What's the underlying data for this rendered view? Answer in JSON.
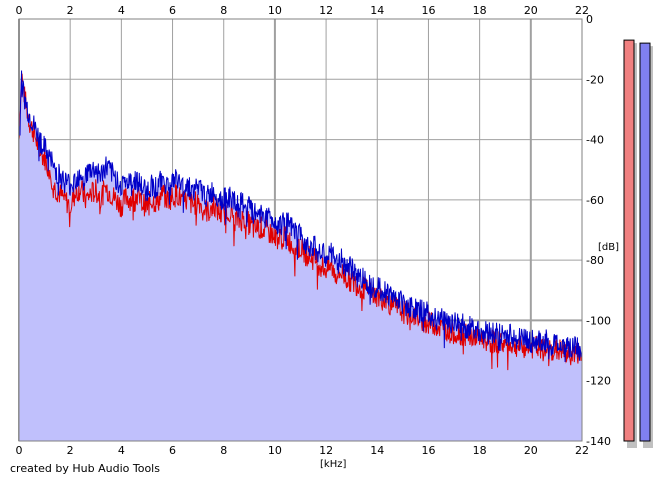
{
  "chart_data": {
    "type": "area",
    "title": "",
    "xlabel": "[kHz]",
    "ylabel": "[dB]",
    "xlim": [
      0,
      22
    ],
    "ylim": [
      -140,
      0
    ],
    "x_ticks": [
      0,
      2,
      4,
      6,
      8,
      10,
      12,
      14,
      16,
      18,
      20,
      22
    ],
    "y_ticks": [
      0,
      -20,
      -40,
      -60,
      -80,
      -100,
      -120,
      -140
    ],
    "grid": true,
    "x_ticks_top": true,
    "series": [
      {
        "color": "#e00000",
        "points": [
          [
            0,
            -40
          ],
          [
            0.1,
            -18
          ],
          [
            0.2,
            -25
          ],
          [
            0.4,
            -34
          ],
          [
            0.6,
            -38
          ],
          [
            0.8,
            -44
          ],
          [
            1,
            -46
          ],
          [
            1.2,
            -50
          ],
          [
            1.4,
            -56
          ],
          [
            1.6,
            -58
          ],
          [
            1.8,
            -60
          ],
          [
            2,
            -62
          ],
          [
            2.2,
            -58
          ],
          [
            2.4,
            -56
          ],
          [
            2.6,
            -60
          ],
          [
            2.8,
            -58
          ],
          [
            3,
            -57
          ],
          [
            3.2,
            -59
          ],
          [
            3.4,
            -56
          ],
          [
            3.6,
            -58
          ],
          [
            3.8,
            -60
          ],
          [
            4,
            -62
          ],
          [
            4.2,
            -59
          ],
          [
            4.4,
            -60
          ],
          [
            4.6,
            -58
          ],
          [
            4.8,
            -61
          ],
          [
            5,
            -62
          ],
          [
            5.2,
            -60
          ],
          [
            5.4,
            -61
          ],
          [
            5.6,
            -58
          ],
          [
            5.8,
            -60
          ],
          [
            6,
            -59
          ],
          [
            6.2,
            -58
          ],
          [
            6.4,
            -61
          ],
          [
            6.6,
            -60
          ],
          [
            6.8,
            -62
          ],
          [
            7,
            -60
          ],
          [
            7.2,
            -63
          ],
          [
            7.4,
            -64
          ],
          [
            7.6,
            -62
          ],
          [
            7.8,
            -64
          ],
          [
            8,
            -65
          ],
          [
            8.2,
            -63
          ],
          [
            8.4,
            -66
          ],
          [
            8.6,
            -67
          ],
          [
            8.8,
            -66
          ],
          [
            9,
            -68
          ],
          [
            9.2,
            -70
          ],
          [
            9.4,
            -69
          ],
          [
            9.6,
            -70
          ],
          [
            9.8,
            -71
          ],
          [
            10,
            -72
          ],
          [
            10.2,
            -73
          ],
          [
            10.4,
            -72
          ],
          [
            10.6,
            -74
          ],
          [
            10.8,
            -76
          ],
          [
            11,
            -76
          ],
          [
            11.2,
            -78
          ],
          [
            11.4,
            -79
          ],
          [
            11.6,
            -80
          ],
          [
            11.8,
            -82
          ],
          [
            12,
            -83
          ],
          [
            12.2,
            -82
          ],
          [
            12.4,
            -85
          ],
          [
            12.6,
            -84
          ],
          [
            12.8,
            -86
          ],
          [
            13,
            -87
          ],
          [
            13.2,
            -88
          ],
          [
            13.4,
            -89
          ],
          [
            13.6,
            -90
          ],
          [
            13.8,
            -91
          ],
          [
            14,
            -92
          ],
          [
            14.2,
            -93
          ],
          [
            14.4,
            -94
          ],
          [
            14.6,
            -95
          ],
          [
            14.8,
            -96
          ],
          [
            15,
            -97
          ],
          [
            15.2,
            -98
          ],
          [
            15.4,
            -98
          ],
          [
            15.6,
            -99
          ],
          [
            15.8,
            -100
          ],
          [
            16,
            -101
          ],
          [
            16.2,
            -101
          ],
          [
            16.4,
            -102
          ],
          [
            16.6,
            -103
          ],
          [
            16.8,
            -103
          ],
          [
            17,
            -104
          ],
          [
            17.2,
            -104
          ],
          [
            17.4,
            -105
          ],
          [
            17.6,
            -105
          ],
          [
            17.8,
            -106
          ],
          [
            18,
            -106
          ],
          [
            18.2,
            -106
          ],
          [
            18.4,
            -107
          ],
          [
            18.6,
            -107
          ],
          [
            18.8,
            -107
          ],
          [
            19,
            -108
          ],
          [
            19.2,
            -108
          ],
          [
            19.4,
            -108
          ],
          [
            19.6,
            -109
          ],
          [
            19.8,
            -109
          ],
          [
            20,
            -109
          ],
          [
            20.2,
            -109
          ],
          [
            20.4,
            -110
          ],
          [
            20.6,
            -110
          ],
          [
            20.8,
            -110
          ],
          [
            21,
            -110
          ],
          [
            21.2,
            -110
          ],
          [
            21.4,
            -111
          ],
          [
            21.6,
            -111
          ],
          [
            21.8,
            -111
          ],
          [
            22,
            -112
          ]
        ]
      },
      {
        "color": "#0000c8",
        "points": [
          [
            0,
            -40
          ],
          [
            0.1,
            -20
          ],
          [
            0.2,
            -26
          ],
          [
            0.4,
            -32
          ],
          [
            0.6,
            -36
          ],
          [
            0.8,
            -40
          ],
          [
            1,
            -43
          ],
          [
            1.2,
            -46
          ],
          [
            1.4,
            -50
          ],
          [
            1.6,
            -52
          ],
          [
            1.8,
            -54
          ],
          [
            2,
            -55
          ],
          [
            2.2,
            -53
          ],
          [
            2.4,
            -51
          ],
          [
            2.6,
            -52
          ],
          [
            2.8,
            -50
          ],
          [
            3,
            -50
          ],
          [
            3.2,
            -52
          ],
          [
            3.4,
            -49
          ],
          [
            3.6,
            -51
          ],
          [
            3.8,
            -53
          ],
          [
            4,
            -55
          ],
          [
            4.2,
            -54
          ],
          [
            4.4,
            -55
          ],
          [
            4.6,
            -53
          ],
          [
            4.8,
            -56
          ],
          [
            5,
            -57
          ],
          [
            5.2,
            -55
          ],
          [
            5.4,
            -56
          ],
          [
            5.6,
            -53
          ],
          [
            5.8,
            -55
          ],
          [
            6,
            -54
          ],
          [
            6.2,
            -53
          ],
          [
            6.4,
            -56
          ],
          [
            6.6,
            -55
          ],
          [
            6.8,
            -57
          ],
          [
            7,
            -56
          ],
          [
            7.2,
            -58
          ],
          [
            7.4,
            -59
          ],
          [
            7.6,
            -57
          ],
          [
            7.8,
            -59
          ],
          [
            8,
            -60
          ],
          [
            8.2,
            -59
          ],
          [
            8.4,
            -61
          ],
          [
            8.6,
            -62
          ],
          [
            8.8,
            -61
          ],
          [
            9,
            -63
          ],
          [
            9.2,
            -65
          ],
          [
            9.4,
            -64
          ],
          [
            9.6,
            -65
          ],
          [
            9.8,
            -66
          ],
          [
            10,
            -67
          ],
          [
            10.2,
            -68
          ],
          [
            10.4,
            -67
          ],
          [
            10.6,
            -69
          ],
          [
            10.8,
            -71
          ],
          [
            11,
            -72
          ],
          [
            11.2,
            -74
          ],
          [
            11.4,
            -75
          ],
          [
            11.6,
            -76
          ],
          [
            11.8,
            -78
          ],
          [
            12,
            -79
          ],
          [
            12.2,
            -78
          ],
          [
            12.4,
            -81
          ],
          [
            12.6,
            -80
          ],
          [
            12.8,
            -82
          ],
          [
            13,
            -83
          ],
          [
            13.2,
            -85
          ],
          [
            13.4,
            -86
          ],
          [
            13.6,
            -87
          ],
          [
            13.8,
            -88
          ],
          [
            14,
            -89
          ],
          [
            14.2,
            -90
          ],
          [
            14.4,
            -91
          ],
          [
            14.6,
            -92
          ],
          [
            14.8,
            -93
          ],
          [
            15,
            -94
          ],
          [
            15.2,
            -95
          ],
          [
            15.4,
            -96
          ],
          [
            15.6,
            -97
          ],
          [
            15.8,
            -97
          ],
          [
            16,
            -98
          ],
          [
            16.2,
            -99
          ],
          [
            16.4,
            -99
          ],
          [
            16.6,
            -100
          ],
          [
            16.8,
            -100
          ],
          [
            17,
            -101
          ],
          [
            17.2,
            -101
          ],
          [
            17.4,
            -102
          ],
          [
            17.6,
            -102
          ],
          [
            17.8,
            -103
          ],
          [
            18,
            -103
          ],
          [
            18.2,
            -104
          ],
          [
            18.4,
            -104
          ],
          [
            18.6,
            -104
          ],
          [
            18.8,
            -105
          ],
          [
            19,
            -105
          ],
          [
            19.2,
            -105
          ],
          [
            19.4,
            -106
          ],
          [
            19.6,
            -106
          ],
          [
            19.8,
            -106
          ],
          [
            20,
            -107
          ],
          [
            20.2,
            -107
          ],
          [
            20.4,
            -107
          ],
          [
            20.6,
            -107
          ],
          [
            20.8,
            -108
          ],
          [
            21,
            -108
          ],
          [
            21.2,
            -108
          ],
          [
            21.4,
            -108
          ],
          [
            21.6,
            -109
          ],
          [
            21.8,
            -109
          ],
          [
            22,
            -110
          ]
        ]
      }
    ],
    "meters": [
      {
        "color": "#f08080",
        "value": -7
      },
      {
        "color": "#8080f0",
        "value": -8
      }
    ]
  },
  "colors": {
    "fill": "#c0c0fc",
    "grid": "#a0a0a0",
    "plot_bg": "#ffffff",
    "major_grid": "#808080"
  },
  "credit": "created by Hub Audio Tools"
}
